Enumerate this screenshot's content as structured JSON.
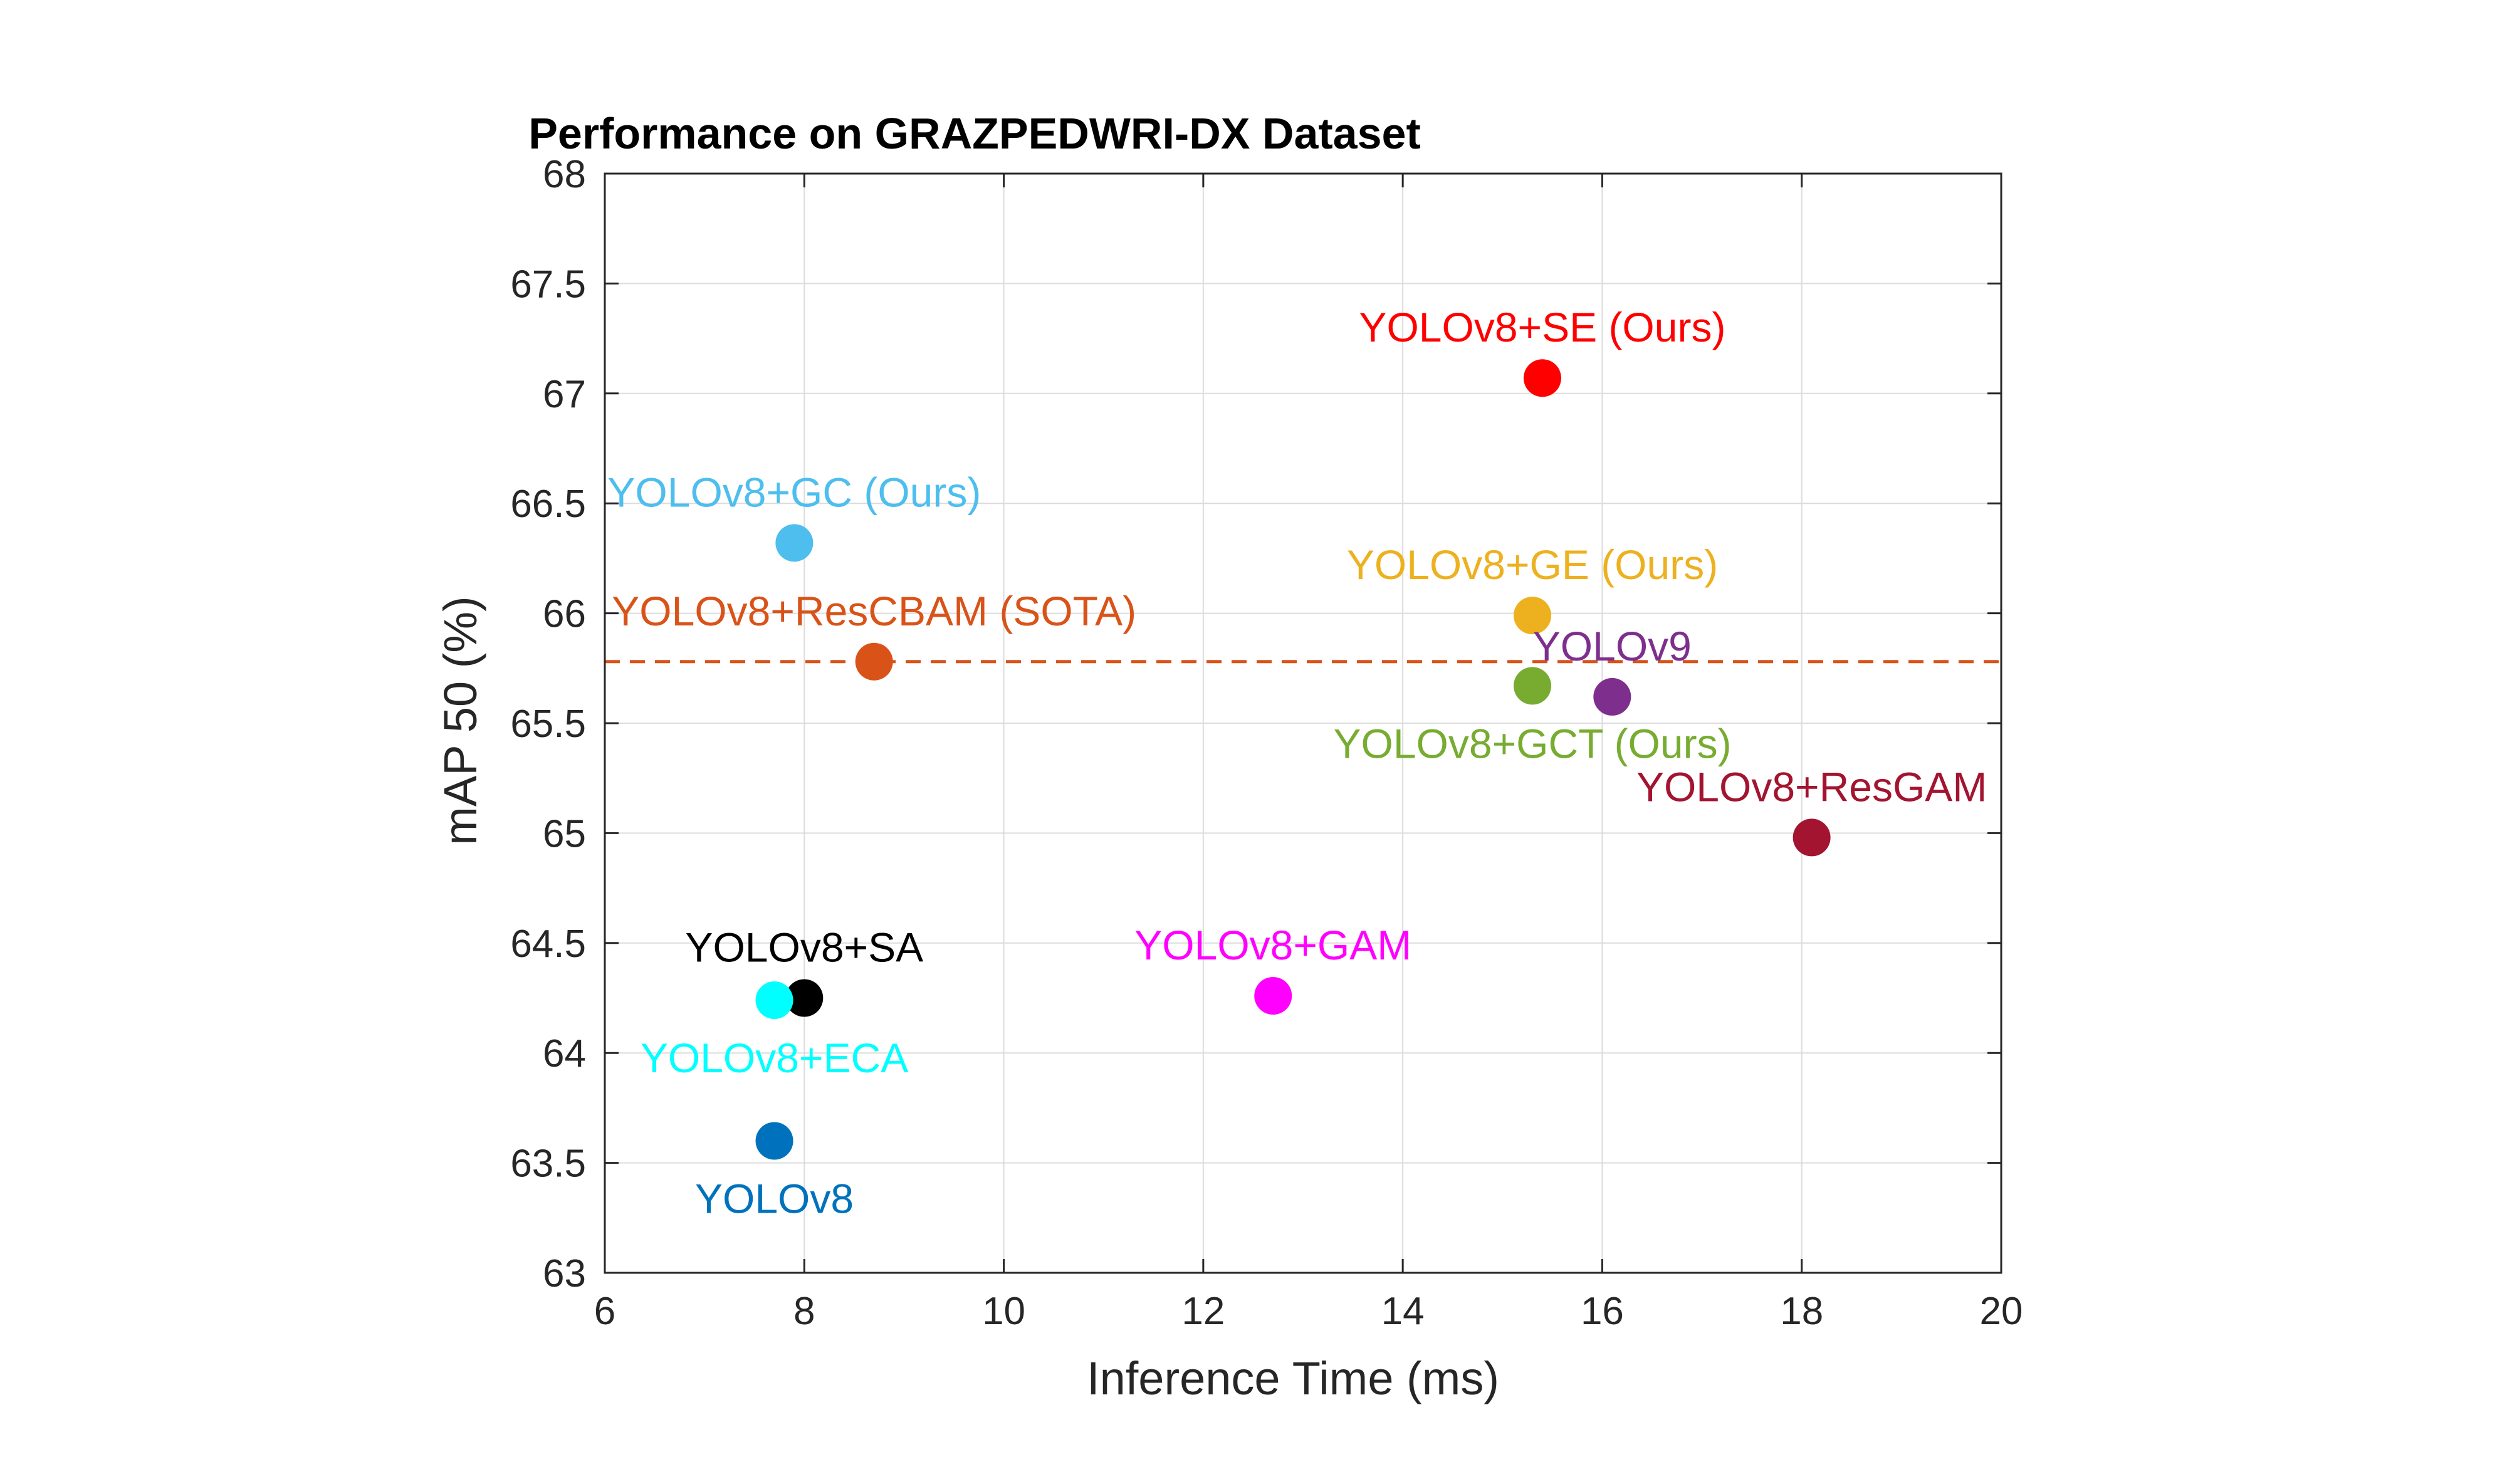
{
  "chart_data": {
    "type": "scatter",
    "title": "Performance on GRAZPEDWRI-DX Dataset",
    "xlabel": "Inference Time (ms)",
    "ylabel": "mAP 50 (%)",
    "xlim": [
      6,
      20
    ],
    "ylim": [
      63,
      68
    ],
    "xticks": [
      "6",
      "8",
      "10",
      "12",
      "14",
      "16",
      "18",
      "20"
    ],
    "yticks": [
      "63",
      "63.5",
      "64",
      "64.5",
      "65",
      "65.5",
      "66",
      "66.5",
      "67",
      "67.5",
      "68"
    ],
    "grid": true,
    "reference_line": {
      "y": 65.78,
      "style": "dashed",
      "color": "#D95319"
    },
    "points": [
      {
        "label": "YOLOv8+SE (Ours)",
        "x": 15.4,
        "y": 67.07,
        "color": "#FF0000",
        "label_pos": "above"
      },
      {
        "label": "YOLOv8+GC (Ours)",
        "x": 7.9,
        "y": 66.32,
        "color": "#4DBEEE",
        "label_pos": "above"
      },
      {
        "label": "YOLOv8+GE (Ours)",
        "x": 15.3,
        "y": 65.99,
        "color": "#EDB120",
        "label_pos": "above"
      },
      {
        "label": "YOLOv8+ResCBAM (SOTA)",
        "x": 8.7,
        "y": 65.78,
        "color": "#D95319",
        "label_pos": "above"
      },
      {
        "label": "YOLOv9",
        "x": 16.1,
        "y": 65.62,
        "color": "#7E2F8E",
        "label_pos": "above"
      },
      {
        "label": "YOLOv8+GCT (Ours)",
        "x": 15.3,
        "y": 65.67,
        "color": "#77AC30",
        "label_pos": "below"
      },
      {
        "label": "YOLOv8+ResGAM",
        "x": 18.1,
        "y": 64.98,
        "color": "#A2142F",
        "label_pos": "above"
      },
      {
        "label": "YOLOv8+SA",
        "x": 8.0,
        "y": 64.25,
        "color": "#000000",
        "label_pos": "above"
      },
      {
        "label": "YOLOv8+ECA",
        "x": 7.7,
        "y": 64.24,
        "color": "#00FFFF",
        "label_pos": "below"
      },
      {
        "label": "YOLOv8+GAM",
        "x": 12.7,
        "y": 64.26,
        "color": "#FF00FF",
        "label_pos": "above"
      },
      {
        "label": "YOLOv8",
        "x": 7.7,
        "y": 63.6,
        "color": "#0072BD",
        "label_pos": "below"
      }
    ]
  }
}
